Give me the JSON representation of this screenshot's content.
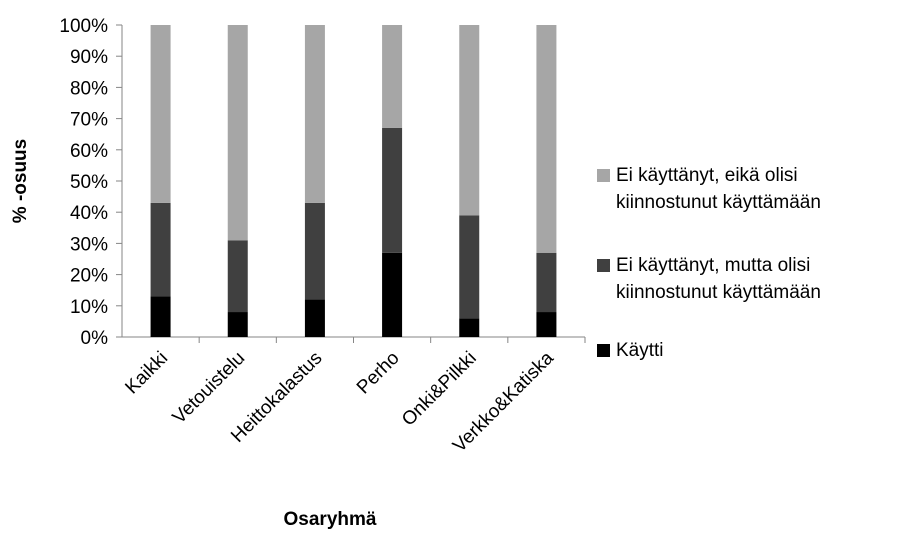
{
  "chart_data": {
    "type": "stacked_bar",
    "categories": [
      "Kaikki",
      "Vetouistelu",
      "Heittokalastus",
      "Perho",
      "Onki&Pilkki",
      "Verkko&Katiska"
    ],
    "series": [
      {
        "name": "Käytti",
        "color": "#000000",
        "values": [
          13,
          8,
          12,
          27,
          6,
          8
        ]
      },
      {
        "name": "Ei käyttänyt, mutta olisi kiinnostunut käyttämään",
        "color": "#404040",
        "values": [
          30,
          23,
          31,
          40,
          33,
          19
        ]
      },
      {
        "name": "Ei käyttänyt, eikä olisi kiinnostunut käyttämään",
        "color": "#a6a6a6",
        "values": [
          57,
          69,
          57,
          33,
          61,
          73
        ]
      }
    ],
    "xlabel": "Osaryhmä",
    "ylabel": "% -osuus",
    "ylim": [
      0,
      100
    ],
    "yticks": [
      {
        "value": 0,
        "label": "0%"
      },
      {
        "value": 10,
        "label": "10%"
      },
      {
        "value": 20,
        "label": "20%"
      },
      {
        "value": 30,
        "label": "30%"
      },
      {
        "value": 40,
        "label": "40%"
      },
      {
        "value": 50,
        "label": "50%"
      },
      {
        "value": 60,
        "label": "60%"
      },
      {
        "value": 70,
        "label": "70%"
      },
      {
        "value": 80,
        "label": "80%"
      },
      {
        "value": 90,
        "label": "90%"
      },
      {
        "value": 100,
        "label": "100%"
      }
    ],
    "grid": false,
    "legend": "right"
  }
}
